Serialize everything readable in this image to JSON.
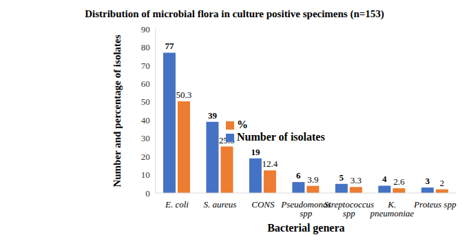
{
  "chart_data": {
    "type": "bar",
    "title": "Distribution of microbial flora in culture positive specimens (n=153)",
    "x_label": "Bacterial genera",
    "y_label": "Number and percentage of isolates",
    "categories": [
      "E. coli",
      "S. aureus",
      "CONS",
      "Pseudomonas spp",
      "Streptococcus spp",
      "K. pneumoniae",
      "Proteus spp"
    ],
    "series": [
      {
        "name": "Number of isolates",
        "color": "#4472c4",
        "values": [
          77,
          39,
          19,
          6,
          5,
          4,
          3
        ]
      },
      {
        "name": "%",
        "color": "#ed7d31",
        "values": [
          50.3,
          25.5,
          12.4,
          3.9,
          3.3,
          2.6,
          2
        ]
      }
    ],
    "ylim": [
      0,
      90
    ],
    "yticks": [
      0,
      10,
      20,
      30,
      40,
      50,
      60,
      70,
      80,
      90
    ],
    "grid": false,
    "legend": "center",
    "data_labels": true
  }
}
